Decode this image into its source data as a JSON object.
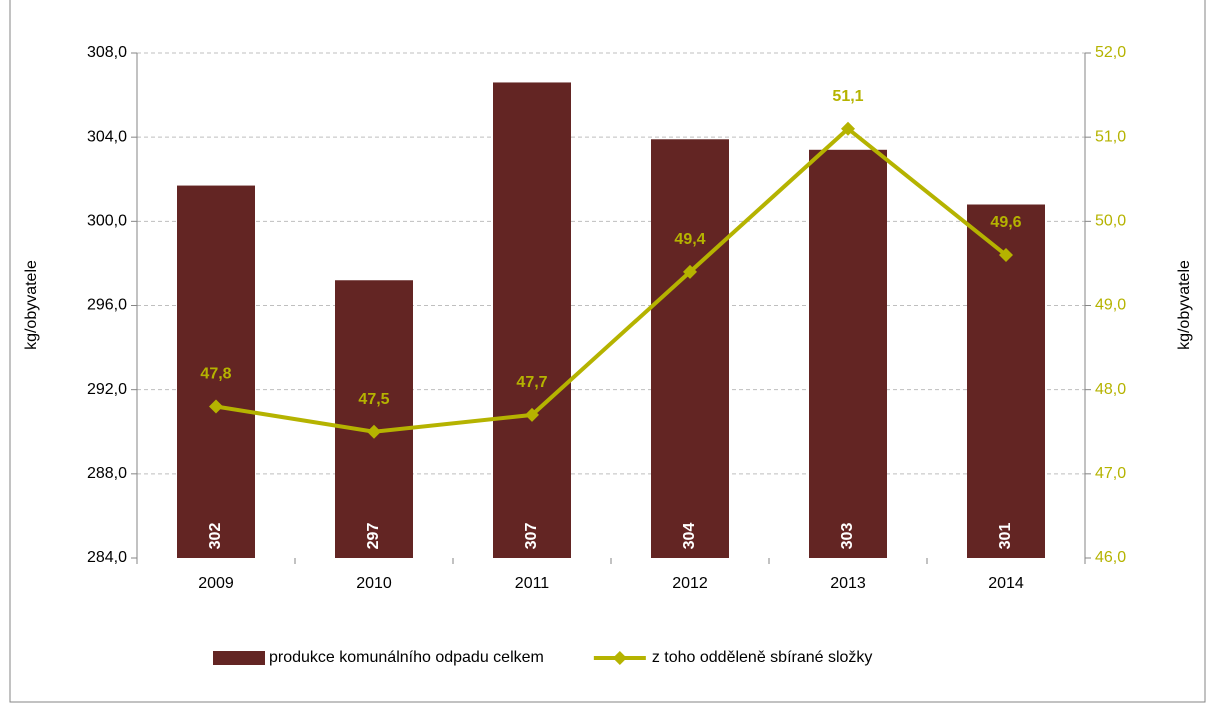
{
  "chart_data": {
    "type": "bar",
    "categories": [
      "2009",
      "2010",
      "2011",
      "2012",
      "2013",
      "2014"
    ],
    "ylabel": "kg/obyvatele",
    "y2label": "kg/obyvatele",
    "ylim": [
      284,
      308
    ],
    "yticks": [
      {
        "value": 284,
        "label": "284,0"
      },
      {
        "value": 288,
        "label": "288,0"
      },
      {
        "value": 292,
        "label": "292,0"
      },
      {
        "value": 296,
        "label": "296,0"
      },
      {
        "value": 300,
        "label": "300,0"
      },
      {
        "value": 304,
        "label": "304,0"
      },
      {
        "value": 308,
        "label": "308,0"
      }
    ],
    "y2lim": [
      46,
      52
    ],
    "y2ticks": [
      {
        "value": 46,
        "label": "46,0"
      },
      {
        "value": 47,
        "label": "47,0"
      },
      {
        "value": 48,
        "label": "48,0"
      },
      {
        "value": 49,
        "label": "49,0"
      },
      {
        "value": 50,
        "label": "50,0"
      },
      {
        "value": 51,
        "label": "51,0"
      },
      {
        "value": 52,
        "label": "52,0"
      }
    ],
    "grid": true,
    "legend": "bottom",
    "series": [
      {
        "name": "produkce komunálního odpadu celkem",
        "type": "bar",
        "color": "#632523",
        "values": [
          301.7,
          297.2,
          306.6,
          303.9,
          303.4,
          300.8
        ],
        "value_labels": [
          "302",
          "297",
          "307",
          "304",
          "303",
          "301"
        ]
      },
      {
        "name": "z toho odděleně sbírané složky",
        "type": "line",
        "axis": "y2",
        "color": "#b5b300",
        "values": [
          47.8,
          47.5,
          47.7,
          49.4,
          51.1,
          49.6
        ],
        "value_labels": [
          "47,8",
          "47,5",
          "47,7",
          "49,4",
          "51,1",
          "49,6"
        ]
      }
    ]
  }
}
